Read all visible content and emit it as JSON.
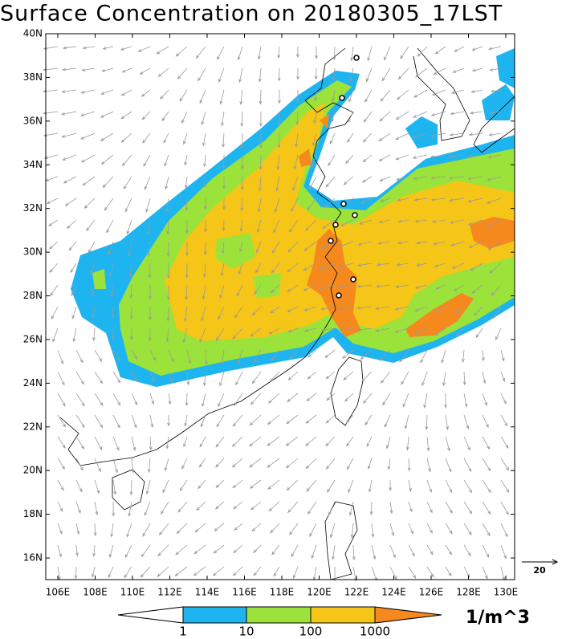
{
  "title": "Surface Concentration on 20180305_17LST",
  "map": {
    "lon_ticks": [
      {
        "value": 106,
        "label": "106E"
      },
      {
        "value": 108,
        "label": "108E"
      },
      {
        "value": 110,
        "label": "110E"
      },
      {
        "value": 112,
        "label": "112E"
      },
      {
        "value": 114,
        "label": "114E"
      },
      {
        "value": 116,
        "label": "116E"
      },
      {
        "value": 118,
        "label": "118E"
      },
      {
        "value": 120,
        "label": "120E"
      },
      {
        "value": 122,
        "label": "122E"
      },
      {
        "value": 124,
        "label": "124E"
      },
      {
        "value": 126,
        "label": "126E"
      },
      {
        "value": 128,
        "label": "128E"
      },
      {
        "value": 130,
        "label": "130E"
      }
    ],
    "lat_ticks": [
      {
        "value": 16,
        "label": "16N"
      },
      {
        "value": 18,
        "label": "18N"
      },
      {
        "value": 20,
        "label": "20N"
      },
      {
        "value": 22,
        "label": "22N"
      },
      {
        "value": 24,
        "label": "24N"
      },
      {
        "value": 26,
        "label": "26N"
      },
      {
        "value": 28,
        "label": "28N"
      },
      {
        "value": 30,
        "label": "30N"
      },
      {
        "value": 32,
        "label": "32N"
      },
      {
        "value": 34,
        "label": "34N"
      },
      {
        "value": 36,
        "label": "36N"
      },
      {
        "value": 38,
        "label": "38N"
      },
      {
        "value": 40,
        "label": "40N"
      }
    ]
  },
  "colorbar": {
    "labels": [
      1,
      10,
      100,
      1000
    ],
    "unit": "1/m^3"
  },
  "reference_vector": {
    "label": 20
  }
}
